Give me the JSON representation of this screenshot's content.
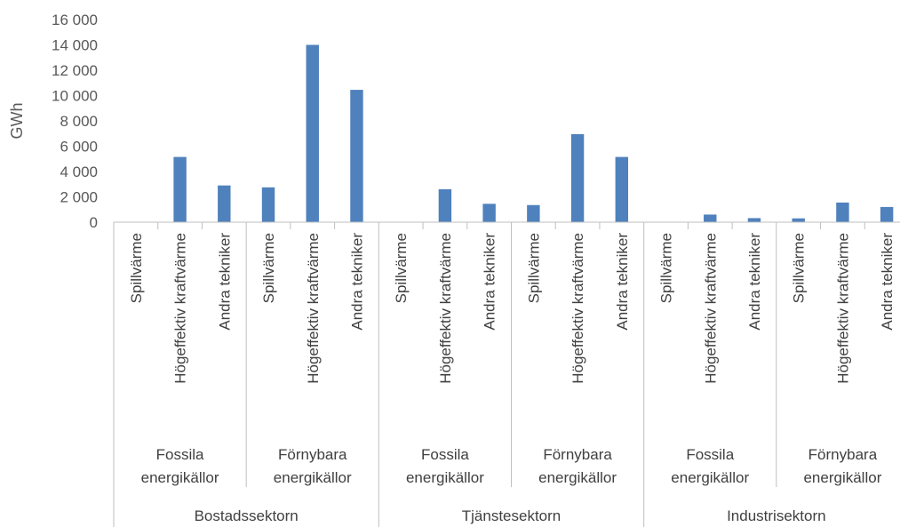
{
  "chart_data": {
    "type": "bar",
    "ylabel": "GWh",
    "ylim": [
      0,
      16000
    ],
    "yticks": [
      0,
      2000,
      4000,
      6000,
      8000,
      10000,
      12000,
      14000,
      16000
    ],
    "ytick_labels": [
      "0",
      "2 000",
      "4 000",
      "6 000",
      "8 000",
      "10 000",
      "12 000",
      "14 000",
      "16 000"
    ],
    "bar_color": "#4f81bd",
    "grid": false,
    "legend": "none",
    "sectors": [
      {
        "label": "Bostadssektorn",
        "groups": [
          {
            "label": "Fossila energikällor",
            "label_lines": [
              "Fossila",
              "energikällor"
            ],
            "categories": [
              "Spillvärme",
              "Högeffektiv kraftvärme",
              "Andra tekniker"
            ],
            "values": [
              0,
              5150,
              2900
            ]
          },
          {
            "label": "Förnybara energikällor",
            "label_lines": [
              "Förnybara",
              "energikällor"
            ],
            "categories": [
              "Spillvärme",
              "Högeffektiv kraftvärme",
              "Andra tekniker"
            ],
            "values": [
              2750,
              14000,
              10450
            ]
          }
        ]
      },
      {
        "label": "Tjänstesektorn",
        "groups": [
          {
            "label": "Fossila energikällor",
            "label_lines": [
              "Fossila",
              "energikällor"
            ],
            "categories": [
              "Spillvärme",
              "Högeffektiv kraftvärme",
              "Andra tekniker"
            ],
            "values": [
              0,
              2600,
              1450
            ]
          },
          {
            "label": "Förnybara energikällor",
            "label_lines": [
              "Förnybara",
              "energikällor"
            ],
            "categories": [
              "Spillvärme",
              "Högeffektiv kraftvärme",
              "Andra tekniker"
            ],
            "values": [
              1350,
              6950,
              5150
            ]
          }
        ]
      },
      {
        "label": "Industrisektorn",
        "groups": [
          {
            "label": "Fossila energikällor",
            "label_lines": [
              "Fossila",
              "energikällor"
            ],
            "categories": [
              "Spillvärme",
              "Högeffektiv kraftvärme",
              "Andra tekniker"
            ],
            "values": [
              0,
              600,
              320
            ]
          },
          {
            "label": "Förnybara energikällor",
            "label_lines": [
              "Förnybara",
              "energikällor"
            ],
            "categories": [
              "Spillvärme",
              "Högeffektiv kraftvärme",
              "Andra tekniker"
            ],
            "values": [
              300,
              1550,
              1200
            ]
          }
        ]
      }
    ]
  }
}
